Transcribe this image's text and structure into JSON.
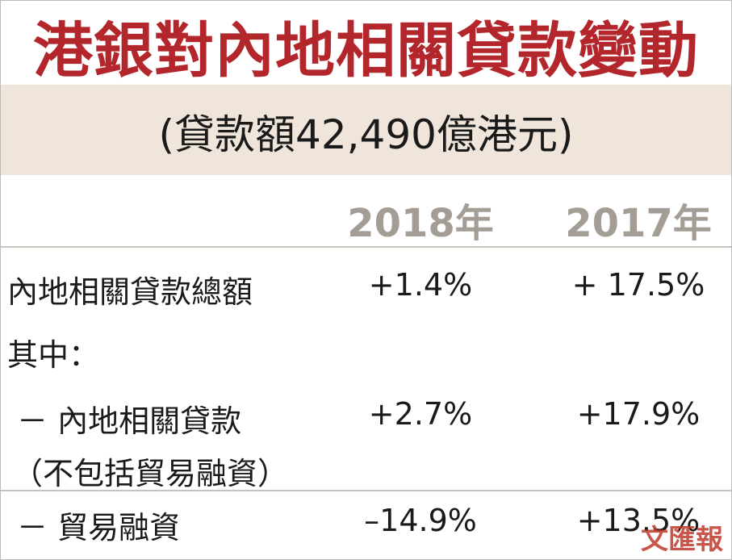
{
  "title": "港銀對內地相關貸款變動",
  "subtitle": "(貸款額42,490億港元)",
  "table": {
    "columns": [
      "2018年",
      "2017年"
    ],
    "rows": [
      {
        "label": "內地相關貸款總額",
        "values": [
          "+1.4%",
          "+ 17.5%"
        ]
      },
      {
        "label": "其中："
      },
      {
        "label": "－ 內地相關貸款",
        "note": "（不包括貿易融資）",
        "values": [
          "+2.7%",
          "+17.9%"
        ]
      },
      {
        "label": "－ 貿易融資",
        "values": [
          "–14.9%",
          "+13.5%"
        ]
      }
    ]
  },
  "watermark": "文匯報"
}
